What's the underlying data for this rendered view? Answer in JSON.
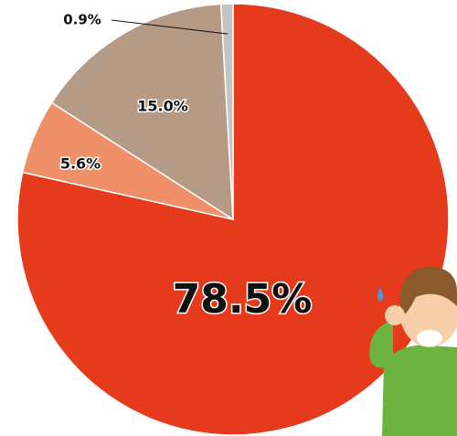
{
  "chart_data": {
    "type": "pie",
    "categories": [
      null,
      null,
      null,
      null
    ],
    "values": [
      78.5,
      5.6,
      15.0,
      0.9
    ],
    "value_labels": [
      "78.5%",
      "5.6%",
      "15.0%",
      "0.9%"
    ],
    "colors": [
      "#e53a1c",
      "#ef9068",
      "#b59a85",
      "#c4c4c4"
    ]
  }
}
